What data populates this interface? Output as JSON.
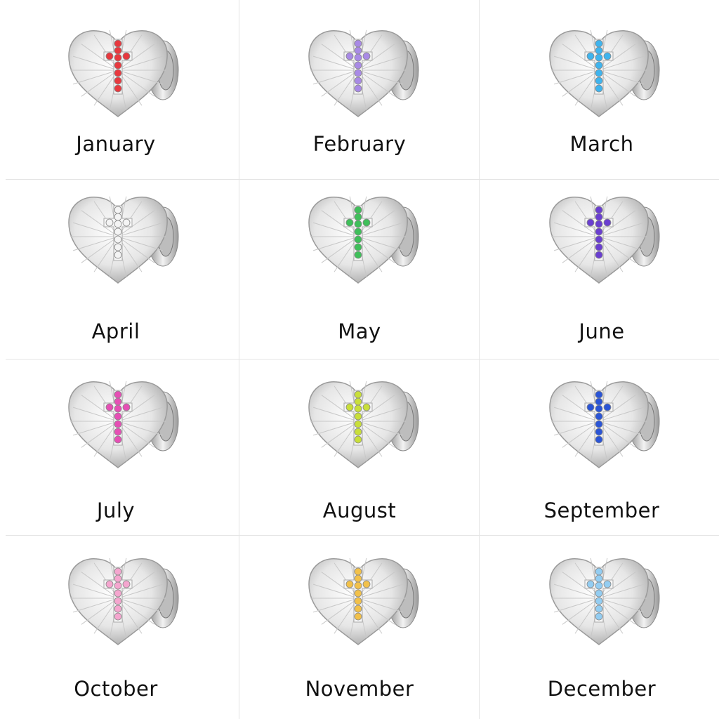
{
  "months": [
    {
      "label": "January",
      "gem_color": "#e8393f"
    },
    {
      "label": "February",
      "gem_color": "#a98ae6"
    },
    {
      "label": "March",
      "gem_color": "#3fb4ee"
    },
    {
      "label": "April",
      "gem_color": "#f4f4f4"
    },
    {
      "label": "May",
      "gem_color": "#3fbf5a"
    },
    {
      "label": "June",
      "gem_color": "#6a3fd0"
    },
    {
      "label": "July",
      "gem_color": "#e64fb5"
    },
    {
      "label": "August",
      "gem_color": "#c9df3a"
    },
    {
      "label": "September",
      "gem_color": "#2b55d6"
    },
    {
      "label": "October",
      "gem_color": "#f5a6cf"
    },
    {
      "label": "November",
      "gem_color": "#f2c14a"
    },
    {
      "label": "December",
      "gem_color": "#93cdf2"
    }
  ]
}
